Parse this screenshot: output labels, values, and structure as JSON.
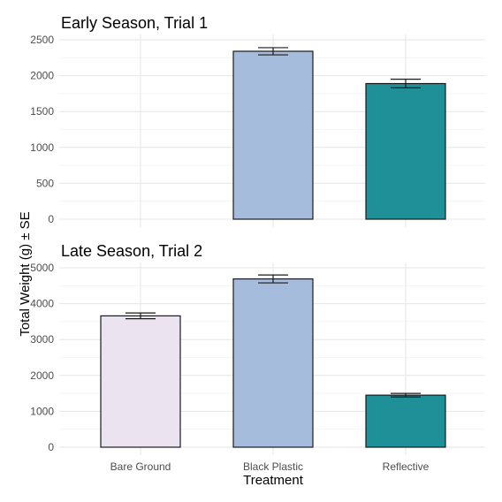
{
  "chart_data": {
    "type": "bar",
    "xlabel": "Treatment",
    "ylabel": "Total Weight (g) ± SE",
    "categories": [
      "Bare Ground",
      "Black Plastic",
      "Reflective"
    ],
    "colors": [
      "#ece3f0",
      "#a6bcdc",
      "#1f8f98"
    ],
    "panels": [
      {
        "title": "Early Season, Trial 1",
        "ylim": [
          0,
          2500
        ],
        "yticks": [
          0,
          500,
          1000,
          1500,
          2000,
          2500
        ],
        "values": [
          0,
          2340,
          1890
        ],
        "errors": [
          0,
          50,
          60
        ]
      },
      {
        "title": "Late Season, Trial 2",
        "ylim": [
          0,
          5000
        ],
        "yticks": [
          0,
          1000,
          2000,
          3000,
          4000,
          5000
        ],
        "values": [
          3660,
          4690,
          1450
        ],
        "errors": [
          80,
          110,
          50
        ]
      }
    ]
  }
}
